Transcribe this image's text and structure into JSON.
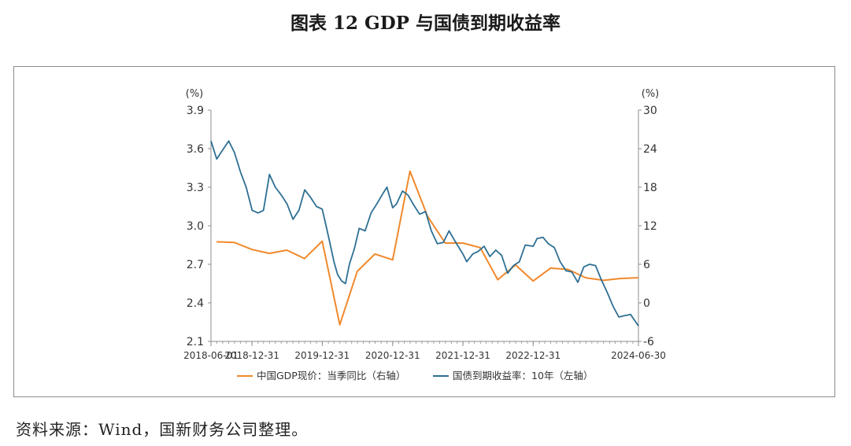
{
  "figure_title": "图表 12  GDP 与国债到期收益率",
  "source_note": "资料来源：Wind，国新财务公司整理。",
  "colors": {
    "gdp": "#f0892c",
    "bond": "#2e6f93",
    "axis": "#8c8c8c",
    "text": "#333333"
  },
  "chart_data": {
    "type": "line",
    "title": "",
    "left_axis": {
      "unit": "(%)",
      "range": [
        2.1,
        3.9
      ],
      "ticks": [
        "2.1",
        "2.4",
        "2.7",
        "3.0",
        "3.3",
        "3.6",
        "3.9"
      ]
    },
    "right_axis": {
      "unit": "(%)",
      "range": [
        -6,
        30
      ],
      "ticks": [
        "-6",
        "0",
        "6",
        "12",
        "18",
        "24",
        "30"
      ]
    },
    "x_range": [
      "2018-06-01",
      "2024-06-30"
    ],
    "x_ticks": [
      "2018-06-01",
      "2018-12-31",
      "2019-12-31",
      "2020-12-31",
      "2021-12-31",
      "2022-12-31",
      "2024-06-30"
    ],
    "legend_position": "bottom",
    "series": [
      {
        "name": "中国GDP现价：当季同比（右轴）",
        "axis": "right",
        "color": "#f0892c",
        "points": [
          [
            "2018-06-30",
            9.5
          ],
          [
            "2018-09-30",
            9.4
          ],
          [
            "2018-12-31",
            8.3
          ],
          [
            "2019-03-31",
            7.7
          ],
          [
            "2019-06-30",
            8.2
          ],
          [
            "2019-09-30",
            6.9
          ],
          [
            "2019-12-31",
            9.6
          ],
          [
            "2020-03-31",
            -3.4
          ],
          [
            "2020-06-30",
            4.9
          ],
          [
            "2020-09-30",
            7.6
          ],
          [
            "2020-12-31",
            6.7
          ],
          [
            "2021-03-31",
            20.5
          ],
          [
            "2021-06-30",
            13.5
          ],
          [
            "2021-09-30",
            9.3
          ],
          [
            "2021-12-31",
            9.3
          ],
          [
            "2022-03-31",
            8.6
          ],
          [
            "2022-06-30",
            3.6
          ],
          [
            "2022-09-30",
            5.9
          ],
          [
            "2022-12-31",
            3.4
          ],
          [
            "2023-03-31",
            5.4
          ],
          [
            "2023-06-30",
            5.2
          ],
          [
            "2023-09-30",
            3.9
          ],
          [
            "2023-12-31",
            3.5
          ],
          [
            "2024-03-31",
            3.8
          ],
          [
            "2024-06-30",
            3.9
          ]
        ]
      },
      {
        "name": "国债到期收益率：10年（左轴）",
        "axis": "left",
        "color": "#2e6f93",
        "points": [
          [
            "2018-06-01",
            3.66
          ],
          [
            "2018-07-01",
            3.52
          ],
          [
            "2018-08-01",
            3.59
          ],
          [
            "2018-09-01",
            3.66
          ],
          [
            "2018-10-01",
            3.57
          ],
          [
            "2018-11-01",
            3.42
          ],
          [
            "2018-12-01",
            3.3
          ],
          [
            "2019-01-01",
            3.12
          ],
          [
            "2019-02-01",
            3.1
          ],
          [
            "2019-03-01",
            3.12
          ],
          [
            "2019-04-01",
            3.4
          ],
          [
            "2019-05-01",
            3.3
          ],
          [
            "2019-06-01",
            3.24
          ],
          [
            "2019-07-01",
            3.17
          ],
          [
            "2019-08-01",
            3.05
          ],
          [
            "2019-09-01",
            3.12
          ],
          [
            "2019-10-01",
            3.28
          ],
          [
            "2019-11-01",
            3.22
          ],
          [
            "2019-12-01",
            3.15
          ],
          [
            "2019-12-31",
            3.13
          ],
          [
            "2020-01-20",
            3.0
          ],
          [
            "2020-02-10",
            2.86
          ],
          [
            "2020-03-01",
            2.72
          ],
          [
            "2020-03-20",
            2.62
          ],
          [
            "2020-04-10",
            2.57
          ],
          [
            "2020-04-30",
            2.55
          ],
          [
            "2020-05-20",
            2.7
          ],
          [
            "2020-06-15",
            2.82
          ],
          [
            "2020-07-10",
            2.98
          ],
          [
            "2020-08-10",
            2.96
          ],
          [
            "2020-09-10",
            3.1
          ],
          [
            "2020-10-10",
            3.17
          ],
          [
            "2020-11-10",
            3.25
          ],
          [
            "2020-12-01",
            3.3
          ],
          [
            "2020-12-31",
            3.14
          ],
          [
            "2021-01-20",
            3.17
          ],
          [
            "2021-02-20",
            3.27
          ],
          [
            "2021-03-20",
            3.24
          ],
          [
            "2021-04-20",
            3.16
          ],
          [
            "2021-05-20",
            3.09
          ],
          [
            "2021-06-20",
            3.11
          ],
          [
            "2021-07-20",
            2.96
          ],
          [
            "2021-08-20",
            2.86
          ],
          [
            "2021-09-20",
            2.87
          ],
          [
            "2021-10-20",
            2.96
          ],
          [
            "2021-11-20",
            2.88
          ],
          [
            "2021-12-31",
            2.78
          ],
          [
            "2022-01-20",
            2.72
          ],
          [
            "2022-02-20",
            2.78
          ],
          [
            "2022-03-20",
            2.8
          ],
          [
            "2022-04-20",
            2.84
          ],
          [
            "2022-05-20",
            2.76
          ],
          [
            "2022-06-20",
            2.81
          ],
          [
            "2022-07-20",
            2.77
          ],
          [
            "2022-08-20",
            2.63
          ],
          [
            "2022-09-20",
            2.69
          ],
          [
            "2022-10-20",
            2.72
          ],
          [
            "2022-11-20",
            2.85
          ],
          [
            "2022-12-31",
            2.84
          ],
          [
            "2023-01-20",
            2.9
          ],
          [
            "2023-02-20",
            2.91
          ],
          [
            "2023-03-20",
            2.86
          ],
          [
            "2023-04-20",
            2.83
          ],
          [
            "2023-05-20",
            2.72
          ],
          [
            "2023-06-20",
            2.65
          ],
          [
            "2023-07-20",
            2.64
          ],
          [
            "2023-08-20",
            2.56
          ],
          [
            "2023-09-20",
            2.68
          ],
          [
            "2023-10-20",
            2.7
          ],
          [
            "2023-11-20",
            2.69
          ],
          [
            "2023-12-20",
            2.58
          ],
          [
            "2024-01-20",
            2.48
          ],
          [
            "2024-02-20",
            2.37
          ],
          [
            "2024-03-20",
            2.29
          ],
          [
            "2024-04-20",
            2.3
          ],
          [
            "2024-05-20",
            2.31
          ],
          [
            "2024-06-30",
            2.22
          ]
        ]
      }
    ]
  }
}
